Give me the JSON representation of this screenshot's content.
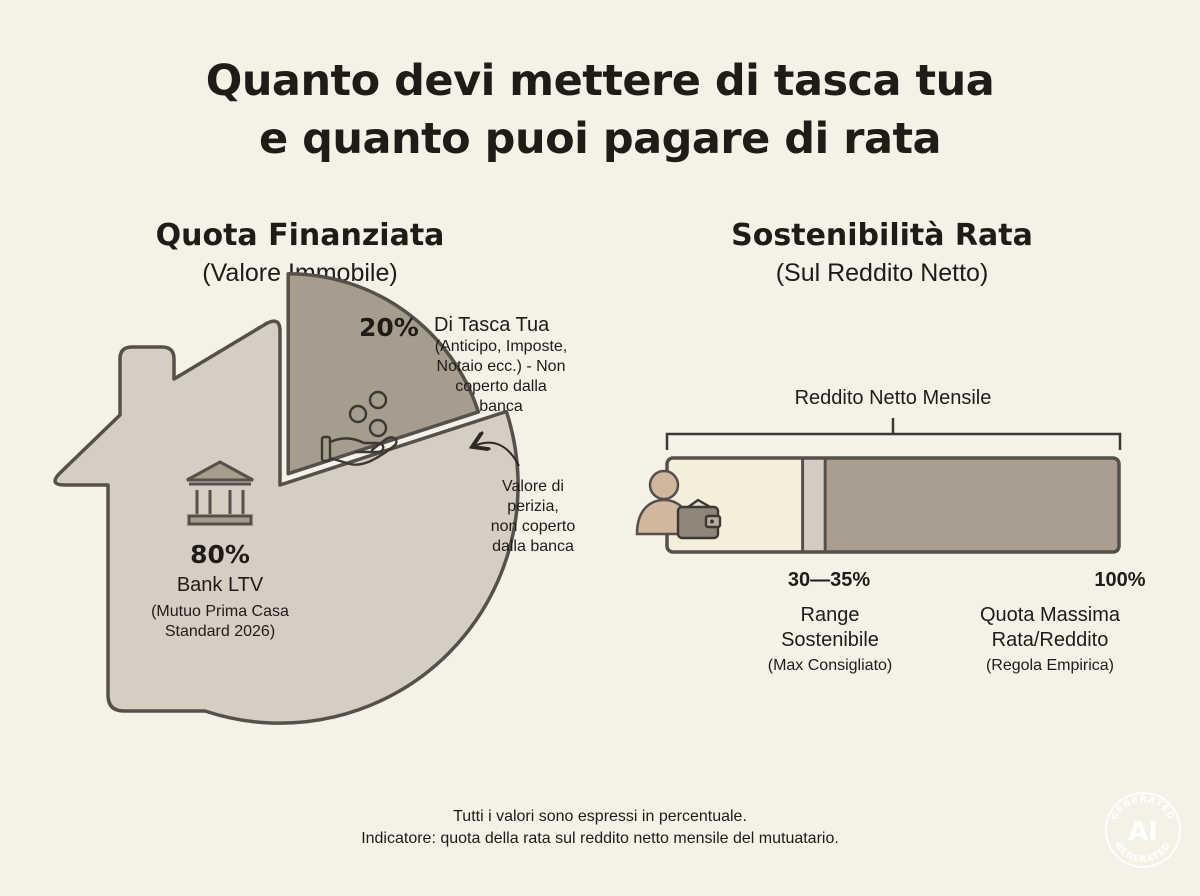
{
  "title": {
    "line1": "Quanto devi mettere di tasca tua",
    "line2": "e quanto puoi pagare di rata"
  },
  "left_section": {
    "title": "Quota Finanziata",
    "subtitle": "(Valore Immobile)",
    "pie": {
      "slices": [
        {
          "value": 80,
          "color": "#d6cdc3"
        },
        {
          "value": 20,
          "color": "#a79d8e"
        }
      ]
    },
    "bank": {
      "icon": "bank-icon",
      "percent": "80%",
      "label": "Bank LTV",
      "desc_line1": "(Mutuo Prima Casa",
      "desc_line2": "Standard 2026)"
    },
    "pocket": {
      "icon": "hand-coins-icon",
      "percent": "20%",
      "label": "Di Tasca Tua",
      "desc_lines": [
        "(Anticipo, Imposte,",
        "Notaio ecc.) - Non",
        "coperto dalla",
        "banca"
      ]
    },
    "annotation": {
      "lines": [
        "Valore di",
        "perizia,",
        "non coperto",
        "dalla banca"
      ]
    }
  },
  "right_section": {
    "title": "Sostenibilità Rata",
    "subtitle": "(Sul Reddito Netto)",
    "bracket_label": "Reddito Netto Mensile",
    "bar": {
      "segments": [
        {
          "from": 0,
          "to": 30,
          "color": "#f5eedc"
        },
        {
          "from": 30,
          "to": 35,
          "color": "#d4ccc3"
        },
        {
          "from": 35,
          "to": 100,
          "color": "#a99e8f"
        }
      ]
    },
    "markers": {
      "range_value": "30—35%",
      "range_label_line1": "Range",
      "range_label_line2": "Sostenibile",
      "range_note": "(Max Consigliato)",
      "max_value": "100%",
      "max_label_line1": "Quota Massima",
      "max_label_line2": "Rata/Reddito",
      "max_note": "(Regola Empirica)"
    },
    "icons": [
      "person-icon",
      "wallet-icon"
    ]
  },
  "footer": {
    "line1": "Tutti i valori sono espressi in percentuale.",
    "line2": "Indicatore: quota della rata sul reddito netto mensile del mutuatario."
  },
  "badge": {
    "ring_text": "GENERATED",
    "center_text": "AI"
  },
  "colors": {
    "background": "#f4f1e7",
    "house_fill": "#d6cdc3",
    "dark_slice": "#a79d8e",
    "stroke": "#56504a"
  }
}
